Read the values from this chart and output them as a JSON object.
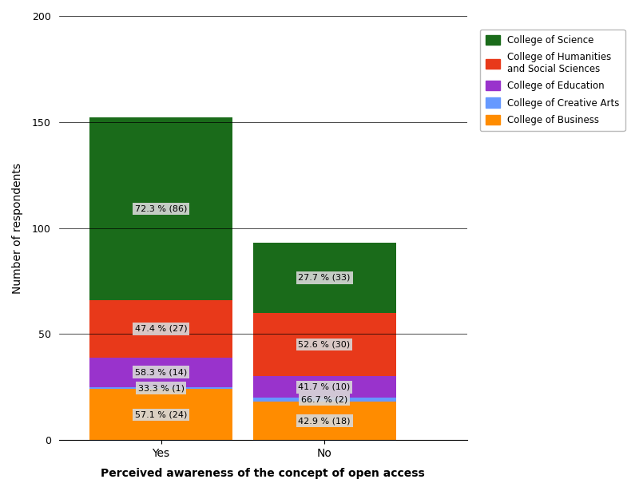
{
  "categories": [
    "Yes",
    "No"
  ],
  "segments": [
    {
      "label": "College of Business",
      "color": "#FF8C00",
      "values": [
        24,
        18
      ],
      "percents": [
        "57.1 % (24)",
        "42.9 % (18)"
      ]
    },
    {
      "label": "College of Creative Arts",
      "color": "#6699FF",
      "values": [
        1,
        2
      ],
      "percents": [
        "33.3 % (1)",
        "66.7 % (2)"
      ]
    },
    {
      "label": "College of Education",
      "color": "#9933CC",
      "values": [
        14,
        10
      ],
      "percents": [
        "58.3 % (14)",
        "41.7 % (10)"
      ]
    },
    {
      "label": "College of Humanities\nand Social Sciences",
      "color": "#E8391A",
      "values": [
        27,
        30
      ],
      "percents": [
        "47.4 % (27)",
        "52.6 % (30)"
      ]
    },
    {
      "label": "College of Science",
      "color": "#1A6B1A",
      "values": [
        86,
        33
      ],
      "percents": [
        "72.3 % (86)",
        "27.7 % (33)"
      ]
    }
  ],
  "xlabel": "Perceived awareness of the concept of open access",
  "ylabel": "Number of respondents",
  "ylim": [
    0,
    200
  ],
  "yticks": [
    0,
    50,
    100,
    150,
    200
  ],
  "legend_labels": [
    "College of Science",
    "College of Humanities\nand Social Sciences",
    "College of Education",
    "College of Creative Arts",
    "College of Business"
  ],
  "legend_colors": [
    "#1A6B1A",
    "#E8391A",
    "#9933CC",
    "#6699FF",
    "#FF8C00"
  ],
  "annotation_fontsize": 8,
  "annotation_bg": "#D8D8D8",
  "bar_width": 0.35,
  "bar_positions": [
    0.25,
    0.65
  ]
}
